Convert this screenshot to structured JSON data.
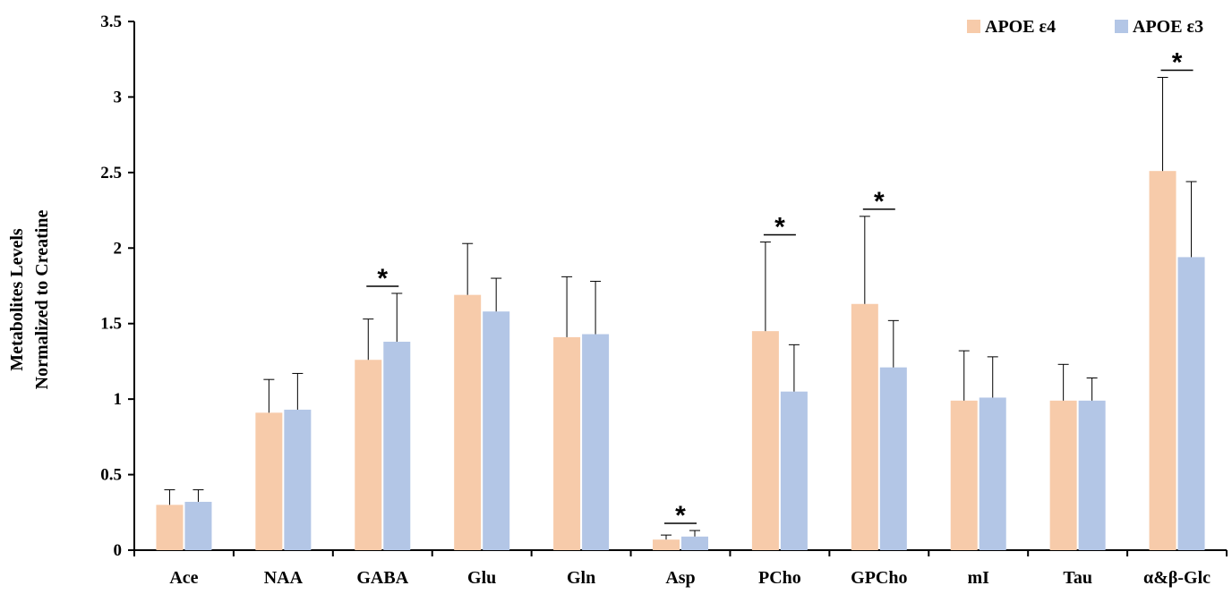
{
  "chart_data": {
    "type": "bar",
    "title": "",
    "xlabel": "",
    "ylabel_lines": [
      "Metabolites Levels",
      "Normalized to Creatine"
    ],
    "ylim": [
      0,
      3.5
    ],
    "yticks": [
      0,
      0.5,
      1,
      1.5,
      2,
      2.5,
      3,
      3.5
    ],
    "ytick_labels": [
      "0",
      "0.5",
      "1",
      "1.5",
      "2",
      "2.5",
      "3",
      "3.5"
    ],
    "grid": false,
    "legend_position": "top-right",
    "categories": [
      "Ace",
      "NAA",
      "GABA",
      "Glu",
      "Gln",
      "Asp",
      "PCho",
      "GPCho",
      "mI",
      "Tau",
      "α&β-Glc"
    ],
    "series": [
      {
        "name": "APOE ε4",
        "color": "#f7cbaa",
        "values": [
          0.3,
          0.91,
          1.26,
          1.69,
          1.41,
          0.07,
          1.45,
          1.63,
          0.99,
          0.99,
          2.51
        ],
        "errors": [
          0.1,
          0.22,
          0.27,
          0.34,
          0.4,
          0.03,
          0.59,
          0.58,
          0.33,
          0.24,
          0.62
        ]
      },
      {
        "name": "APOE ε3",
        "color": "#b3c6e6",
        "values": [
          0.32,
          0.93,
          1.38,
          1.58,
          1.43,
          0.09,
          1.05,
          1.21,
          1.01,
          0.99,
          1.94
        ],
        "errors": [
          0.08,
          0.24,
          0.32,
          0.22,
          0.35,
          0.04,
          0.31,
          0.31,
          0.27,
          0.15,
          0.5
        ]
      }
    ],
    "significance": [
      {
        "category": "GABA",
        "label": "*"
      },
      {
        "category": "Asp",
        "label": "*"
      },
      {
        "category": "PCho",
        "label": "*"
      },
      {
        "category": "GPCho",
        "label": "*"
      },
      {
        "category": "α&β-Glc",
        "label": "*"
      }
    ]
  }
}
